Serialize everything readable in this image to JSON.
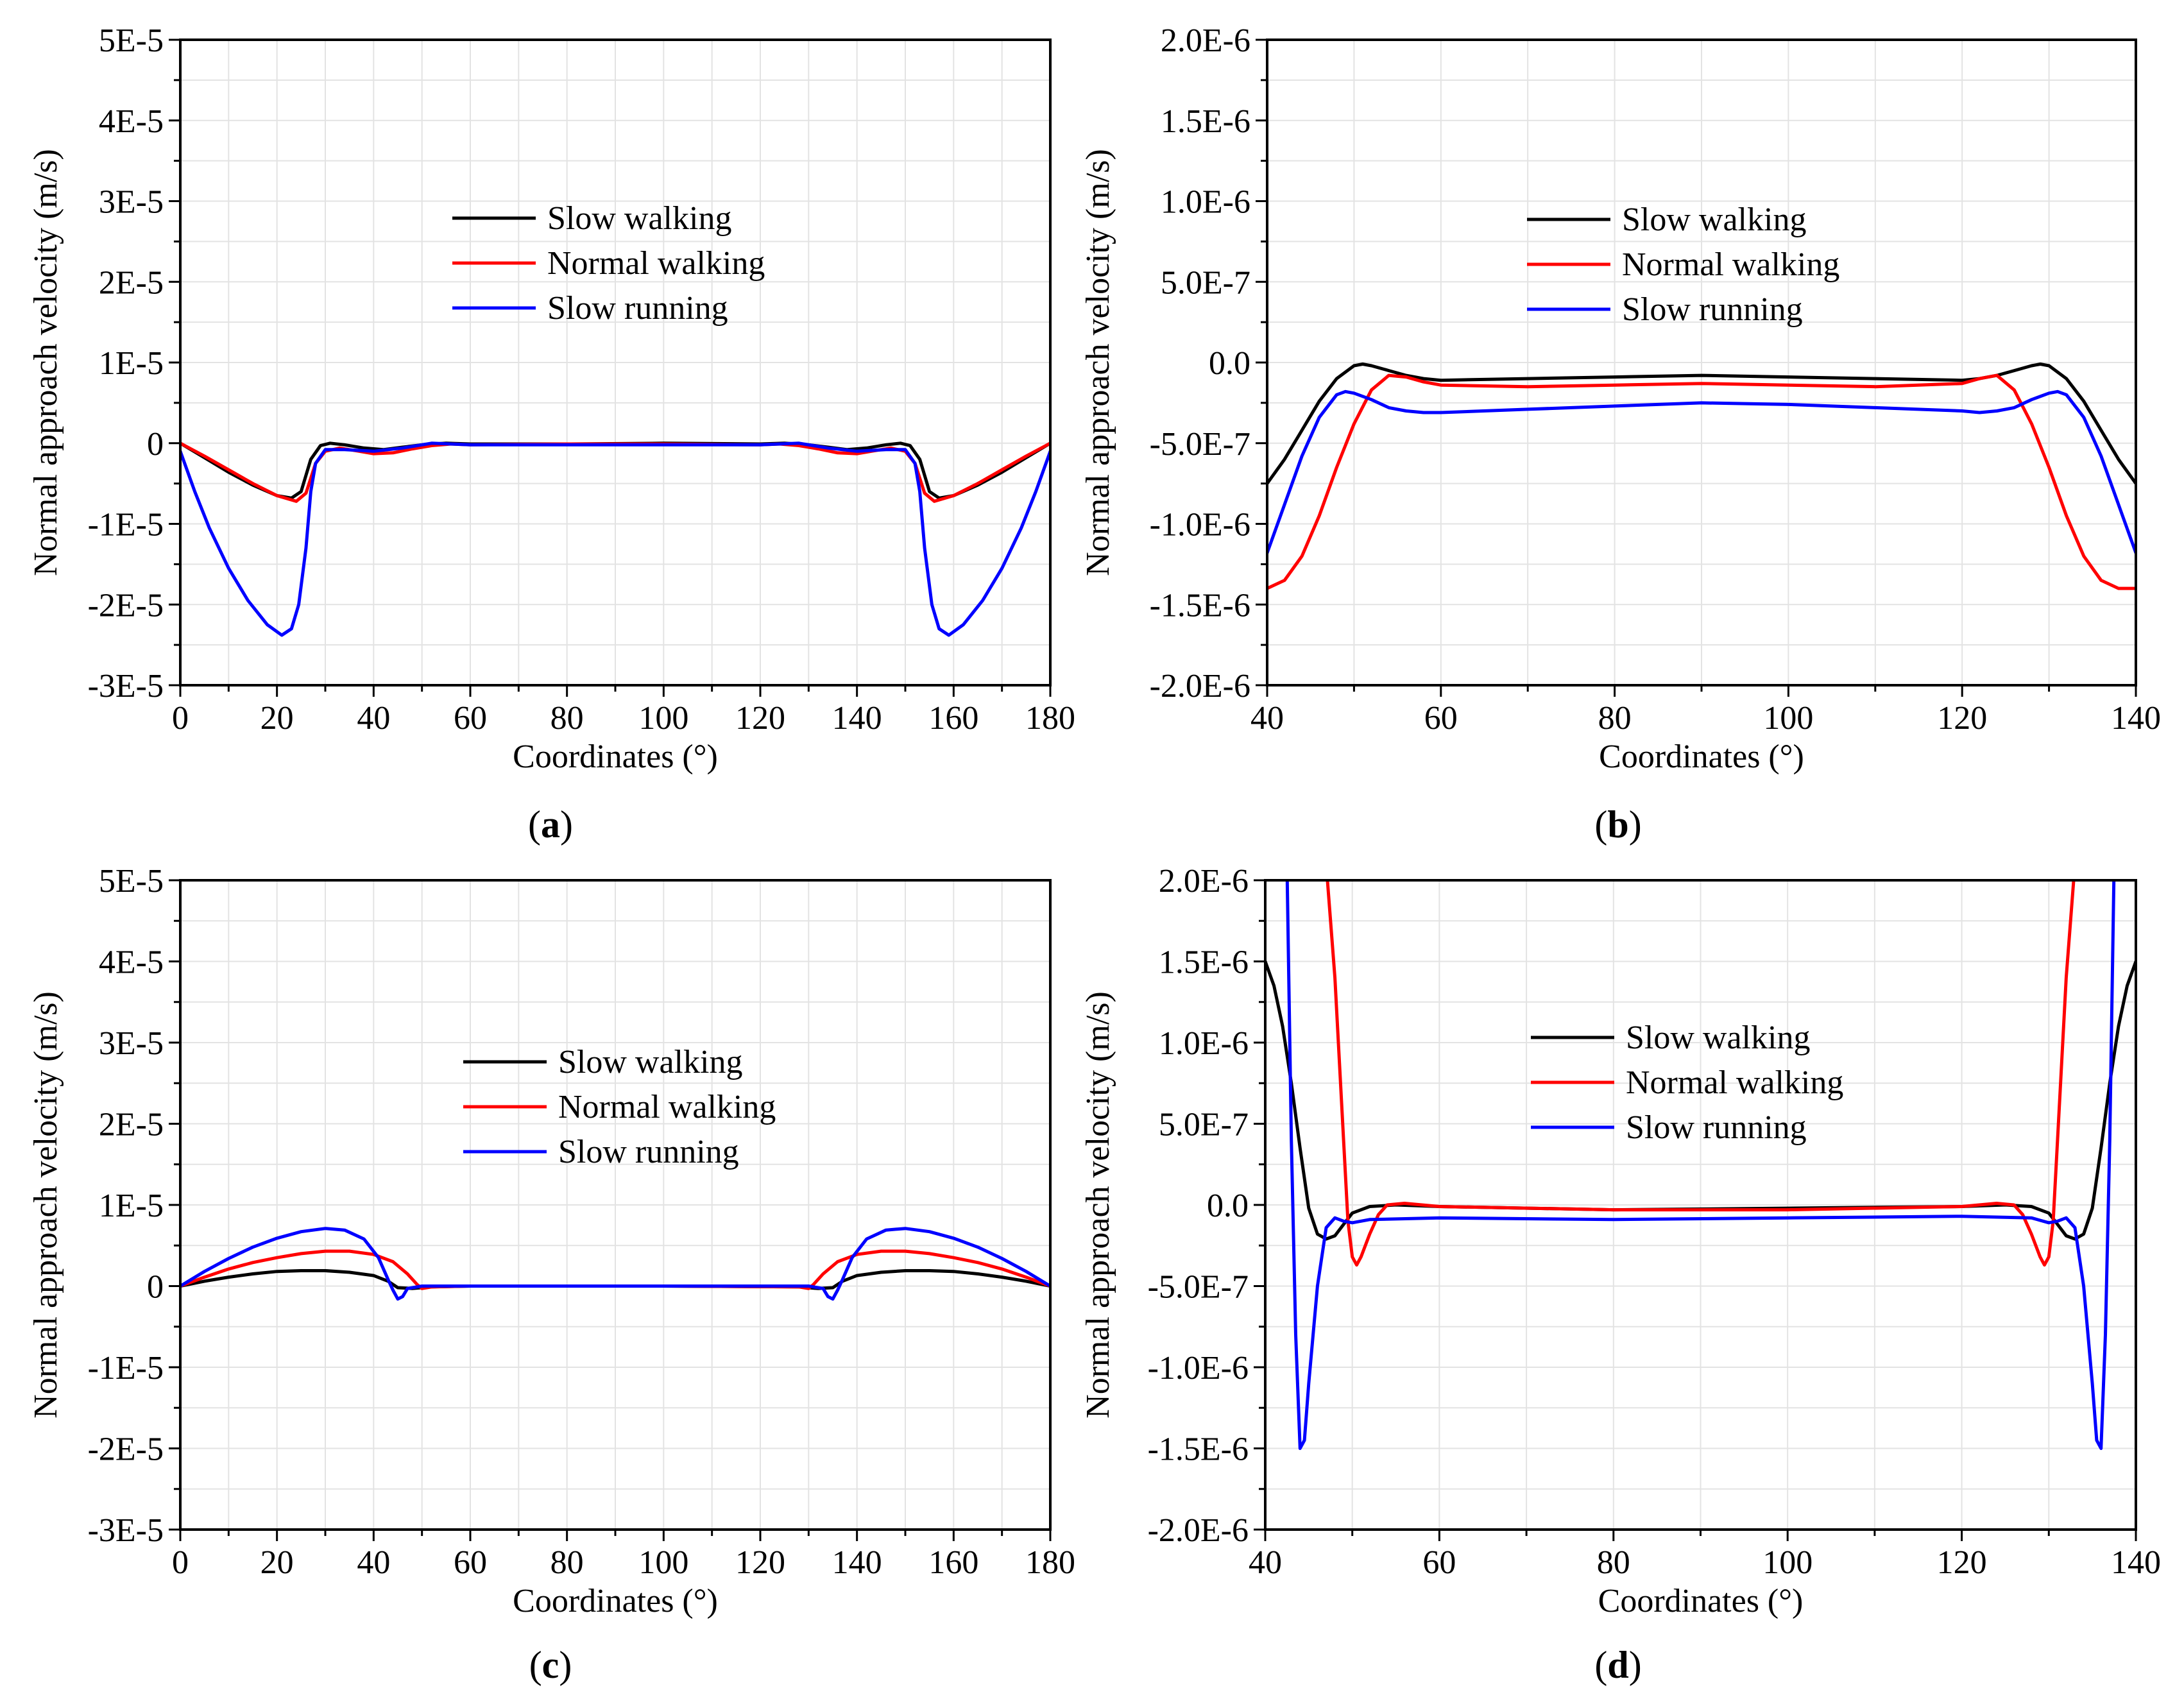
{
  "chart_data": [
    {
      "panel": "a",
      "type": "line",
      "xlabel": "Coordinates (°)",
      "ylabel": "Normal approach velocity (m/s)",
      "xlim": [
        0,
        180
      ],
      "ylim": [
        -3e-05,
        5e-05
      ],
      "xticks": [
        0,
        20,
        40,
        60,
        80,
        100,
        120,
        140,
        160,
        180
      ],
      "xtick_labels": [
        "0",
        "20",
        "40",
        "60",
        "80",
        "100",
        "120",
        "140",
        "160",
        "180"
      ],
      "yticks": [
        -3e-05,
        -2e-05,
        -1e-05,
        0,
        1e-05,
        2e-05,
        3e-05,
        4e-05,
        5e-05
      ],
      "ytick_labels": [
        "-3E-5",
        "-2E-5",
        "-1E-5",
        "0",
        "1E-5",
        "2E-5",
        "3E-5",
        "4E-5",
        "5E-5"
      ],
      "grid": true,
      "legend_position": "upper-center",
      "series": [
        {
          "name": "Slow walking",
          "color": "#000000",
          "x": [
            0,
            5,
            10,
            15,
            20,
            23,
            25,
            27,
            29,
            31,
            34,
            38,
            42,
            46,
            50,
            55,
            60,
            80,
            100,
            120,
            125,
            130,
            134,
            138,
            142,
            146,
            149,
            151,
            153,
            155,
            157,
            160,
            165,
            170,
            175,
            180
          ],
          "y": [
            0,
            -1.8e-06,
            -3.6e-06,
            -5.2e-06,
            -6.5e-06,
            -6.8e-06,
            -6e-06,
            -2e-06,
            -3e-07,
            0,
            -2e-07,
            -6e-07,
            -8e-07,
            -5e-07,
            -2e-07,
            0,
            -1e-07,
            -1e-07,
            0,
            -1e-07,
            0,
            -2e-07,
            -5e-07,
            -8e-07,
            -6e-07,
            -2e-07,
            0,
            -3e-07,
            -2e-06,
            -6e-06,
            -6.8e-06,
            -6.5e-06,
            -5.2e-06,
            -3.6e-06,
            -1.8e-06,
            0
          ]
        },
        {
          "name": "Normal walking",
          "color": "#ff0000",
          "x": [
            0,
            5,
            10,
            15,
            20,
            24,
            26,
            28,
            30,
            33,
            37,
            40,
            44,
            48,
            52,
            56,
            60,
            80,
            100,
            120,
            124,
            128,
            132,
            136,
            140,
            143,
            147,
            150,
            152,
            154,
            156,
            160,
            165,
            170,
            175,
            180
          ],
          "y": [
            0,
            -1.6e-06,
            -3.3e-06,
            -5e-06,
            -6.5e-06,
            -7.2e-06,
            -6.2e-06,
            -2.5e-06,
            -1e-06,
            -6e-07,
            -1e-06,
            -1.3e-06,
            -1.2e-06,
            -7e-07,
            -3e-07,
            -1e-07,
            -2e-07,
            -1e-07,
            -1e-07,
            -2e-07,
            -1e-07,
            -3e-07,
            -7e-07,
            -1.2e-06,
            -1.3e-06,
            -1e-06,
            -6e-07,
            -1e-06,
            -2.5e-06,
            -6.2e-06,
            -7.2e-06,
            -6.5e-06,
            -5e-06,
            -3.3e-06,
            -1.6e-06,
            0
          ]
        },
        {
          "name": "Slow running",
          "color": "#0000ff",
          "x": [
            0,
            3,
            6,
            10,
            14,
            18,
            21,
            23,
            24.5,
            26,
            27,
            28,
            30,
            34,
            40,
            46,
            52,
            60,
            80,
            100,
            120,
            128,
            134,
            140,
            146,
            150,
            152,
            153,
            154,
            155.5,
            157,
            159,
            162,
            166,
            170,
            174,
            177,
            180
          ],
          "y": [
            -1e-06,
            -6e-06,
            -1.05e-05,
            -1.55e-05,
            -1.95e-05,
            -2.25e-05,
            -2.38e-05,
            -2.3e-05,
            -2e-05,
            -1.3e-05,
            -6e-06,
            -2.5e-06,
            -8e-07,
            -8e-07,
            -1e-06,
            -6e-07,
            0,
            -2e-07,
            -2e-07,
            -2e-07,
            -2e-07,
            0,
            -6e-07,
            -1e-06,
            -8e-07,
            -8e-07,
            -2.5e-06,
            -6e-06,
            -1.3e-05,
            -2e-05,
            -2.3e-05,
            -2.38e-05,
            -2.25e-05,
            -1.95e-05,
            -1.55e-05,
            -1.05e-05,
            -6e-06,
            -1e-06
          ]
        }
      ]
    },
    {
      "panel": "b",
      "type": "line",
      "xlabel": "Coordinates (°)",
      "ylabel": "Normal approach velocity (m/s)",
      "xlim": [
        40,
        140
      ],
      "ylim": [
        -2e-06,
        2e-06
      ],
      "xticks": [
        40,
        60,
        80,
        100,
        120,
        140
      ],
      "xtick_labels": [
        "40",
        "60",
        "80",
        "100",
        "120",
        "140"
      ],
      "yticks": [
        -2e-06,
        -1.5e-06,
        -1e-06,
        -5e-07,
        0,
        5e-07,
        1e-06,
        1.5e-06,
        2e-06
      ],
      "ytick_labels": [
        "-2.0E-6",
        "-1.5E-6",
        "-1.0E-6",
        "-5.0E-7",
        "0.0",
        "5.0E-7",
        "1.0E-6",
        "1.5E-6",
        "2.0E-6"
      ],
      "grid": true,
      "legend_position": "upper-center",
      "series": [
        {
          "name": "Slow walking",
          "color": "#000000",
          "x": [
            40,
            42,
            44,
            46,
            48,
            50,
            51,
            52,
            54,
            56,
            58,
            60,
            70,
            80,
            90,
            100,
            110,
            120,
            122,
            124,
            126,
            128,
            129,
            130,
            132,
            134,
            136,
            138,
            140
          ],
          "y": [
            -7.5e-07,
            -6e-07,
            -4.2e-07,
            -2.4e-07,
            -1e-07,
            -2e-08,
            -1e-08,
            -2e-08,
            -5e-08,
            -8e-08,
            -1e-07,
            -1.1e-07,
            -1e-07,
            -9e-08,
            -8e-08,
            -9e-08,
            -1e-07,
            -1.1e-07,
            -1e-07,
            -8e-08,
            -5e-08,
            -2e-08,
            -1e-08,
            -2e-08,
            -1e-07,
            -2.4e-07,
            -4.2e-07,
            -6e-07,
            -7.5e-07
          ]
        },
        {
          "name": "Normal walking",
          "color": "#ff0000",
          "x": [
            40,
            42,
            44,
            46,
            48,
            50,
            52,
            54,
            56,
            58,
            60,
            70,
            80,
            90,
            100,
            110,
            120,
            122,
            124,
            126,
            128,
            130,
            132,
            134,
            136,
            138,
            140
          ],
          "y": [
            -1.4e-06,
            -1.35e-06,
            -1.2e-06,
            -9.5e-07,
            -6.5e-07,
            -3.8e-07,
            -1.7e-07,
            -8e-08,
            -9e-08,
            -1.2e-07,
            -1.4e-07,
            -1.5e-07,
            -1.4e-07,
            -1.3e-07,
            -1.4e-07,
            -1.5e-07,
            -1.3e-07,
            -1e-07,
            -8e-08,
            -1.7e-07,
            -3.8e-07,
            -6.5e-07,
            -9.5e-07,
            -1.2e-06,
            -1.35e-06,
            -1.4e-06,
            -1.4e-06
          ]
        },
        {
          "name": "Slow running",
          "color": "#0000ff",
          "x": [
            40,
            42,
            44,
            46,
            48,
            49,
            50,
            52,
            54,
            56,
            58,
            60,
            70,
            80,
            90,
            100,
            110,
            120,
            122,
            124,
            126,
            128,
            130,
            131,
            132,
            134,
            136,
            138,
            140
          ],
          "y": [
            -1.18e-06,
            -8.8e-07,
            -5.8e-07,
            -3.4e-07,
            -2e-07,
            -1.8e-07,
            -1.9e-07,
            -2.3e-07,
            -2.8e-07,
            -3e-07,
            -3.1e-07,
            -3.1e-07,
            -2.9e-07,
            -2.7e-07,
            -2.5e-07,
            -2.6e-07,
            -2.8e-07,
            -3e-07,
            -3.1e-07,
            -3e-07,
            -2.8e-07,
            -2.3e-07,
            -1.9e-07,
            -1.8e-07,
            -2e-07,
            -3.4e-07,
            -5.8e-07,
            -8.8e-07,
            -1.18e-06
          ]
        }
      ]
    },
    {
      "panel": "c",
      "type": "line",
      "xlabel": "Coordinates (°)",
      "ylabel": "Normal approach velocity (m/s)",
      "xlim": [
        0,
        180
      ],
      "ylim": [
        -3e-05,
        5e-05
      ],
      "xticks": [
        0,
        20,
        40,
        60,
        80,
        100,
        120,
        140,
        160,
        180
      ],
      "xtick_labels": [
        "0",
        "20",
        "40",
        "60",
        "80",
        "100",
        "120",
        "140",
        "160",
        "180"
      ],
      "yticks": [
        -3e-05,
        -2e-05,
        -1e-05,
        0,
        1e-05,
        2e-05,
        3e-05,
        4e-05,
        5e-05
      ],
      "ytick_labels": [
        "-3E-5",
        "-2E-5",
        "-1E-5",
        "0",
        "1E-5",
        "2E-5",
        "3E-5",
        "4E-5",
        "5E-5"
      ],
      "grid": true,
      "legend_position": "center",
      "series": [
        {
          "name": "Slow walking",
          "color": "#000000",
          "x": [
            0,
            5,
            10,
            15,
            20,
            25,
            30,
            35,
            40,
            43,
            45,
            48,
            52,
            60,
            100,
            128,
            132,
            135,
            137,
            140,
            145,
            150,
            155,
            160,
            165,
            170,
            175,
            180
          ],
          "y": [
            0,
            6e-07,
            1.1e-06,
            1.5e-06,
            1.8e-06,
            1.9e-06,
            1.9e-06,
            1.7e-06,
            1.3e-06,
            6e-07,
            -2e-07,
            -3e-07,
            -1e-07,
            0,
            0,
            -1e-07,
            -3e-07,
            -2e-07,
            6e-07,
            1.3e-06,
            1.7e-06,
            1.9e-06,
            1.9e-06,
            1.8e-06,
            1.5e-06,
            1.1e-06,
            6e-07,
            0
          ]
        },
        {
          "name": "Normal walking",
          "color": "#ff0000",
          "x": [
            0,
            5,
            10,
            15,
            20,
            25,
            30,
            35,
            40,
            44,
            47,
            49,
            50,
            52,
            60,
            100,
            128,
            130,
            131,
            133,
            136,
            140,
            145,
            150,
            155,
            160,
            165,
            170,
            175,
            180
          ],
          "y": [
            0,
            1.1e-06,
            2.1e-06,
            2.9e-06,
            3.5e-06,
            4e-06,
            4.3e-06,
            4.3e-06,
            3.9e-06,
            3e-06,
            1.5e-06,
            2e-07,
            -3e-07,
            -1e-07,
            0,
            0,
            -1e-07,
            -3e-07,
            2e-07,
            1.5e-06,
            3e-06,
            3.9e-06,
            4.3e-06,
            4.3e-06,
            4e-06,
            3.5e-06,
            2.9e-06,
            2.1e-06,
            1.1e-06,
            0
          ]
        },
        {
          "name": "Slow running",
          "color": "#0000ff",
          "x": [
            0,
            5,
            10,
            15,
            20,
            25,
            30,
            34,
            38,
            41,
            43,
            44,
            45,
            46,
            47,
            50,
            60,
            100,
            130,
            133,
            134,
            135,
            136,
            137,
            139,
            142,
            146,
            150,
            155,
            160,
            165,
            170,
            175,
            180
          ],
          "y": [
            0,
            1.8e-06,
            3.4e-06,
            4.8e-06,
            5.9e-06,
            6.7e-06,
            7.1e-06,
            6.9e-06,
            5.8e-06,
            3.5e-06,
            8e-07,
            -5e-07,
            -1.6e-06,
            -1.3e-06,
            -3e-07,
            0,
            0,
            0,
            0,
            -3e-07,
            -1.3e-06,
            -1.6e-06,
            -5e-07,
            8e-07,
            3.5e-06,
            5.8e-06,
            6.9e-06,
            7.1e-06,
            6.7e-06,
            5.9e-06,
            4.8e-06,
            3.4e-06,
            1.8e-06,
            0
          ]
        }
      ]
    },
    {
      "panel": "d",
      "type": "line",
      "xlabel": "Coordinates (°)",
      "ylabel": "Normal approach velocity (m/s)",
      "xlim": [
        40,
        140
      ],
      "ylim": [
        -2e-06,
        2e-06
      ],
      "xticks": [
        40,
        60,
        80,
        100,
        120,
        140
      ],
      "xtick_labels": [
        "40",
        "60",
        "80",
        "100",
        "120",
        "140"
      ],
      "yticks": [
        -2e-06,
        -1.5e-06,
        -1e-06,
        -5e-07,
        0,
        5e-07,
        1e-06,
        1.5e-06,
        2e-06
      ],
      "ytick_labels": [
        "-2.0E-6",
        "-1.5E-6",
        "-1.0E-6",
        "-5.0E-7",
        "0.0",
        "5.0E-7",
        "1.0E-6",
        "1.5E-6",
        "2.0E-6"
      ],
      "grid": true,
      "legend_position": "center",
      "series": [
        {
          "name": "Slow walking",
          "color": "#000000",
          "x": [
            40,
            41,
            42,
            43,
            44,
            45,
            46,
            47,
            48,
            49,
            50,
            52,
            55,
            60,
            80,
            100,
            120,
            125,
            128,
            130,
            131,
            132,
            133,
            134,
            135,
            136,
            137,
            138,
            139,
            140
          ],
          "y": [
            1.5e-06,
            1.35e-06,
            1.1e-06,
            7.5e-07,
            3.5e-07,
            -2e-08,
            -1.8e-07,
            -2.1e-07,
            -1.9e-07,
            -1.2e-07,
            -5e-08,
            -1e-08,
            0,
            -1e-08,
            -3e-08,
            -2e-08,
            -1e-08,
            0,
            -1e-08,
            -5e-08,
            -1.2e-07,
            -1.9e-07,
            -2.1e-07,
            -1.8e-07,
            -2e-08,
            3.5e-07,
            7.5e-07,
            1.1e-06,
            1.35e-06,
            1.5e-06
          ]
        },
        {
          "name": "Normal walking",
          "color": "#ff0000",
          "x": [
            47,
            48,
            49,
            49.5,
            50,
            50.5,
            51,
            52,
            53,
            54,
            56,
            60,
            80,
            100,
            120,
            124,
            126,
            127,
            128,
            129,
            129.5,
            130,
            130.5,
            131,
            132,
            133
          ],
          "y": [
            2.1e-06,
            1.4e-06,
            4e-07,
            -1e-07,
            -3.2e-07,
            -3.7e-07,
            -3.2e-07,
            -1.8e-07,
            -6e-08,
            0,
            1e-08,
            -1e-08,
            -3e-08,
            -3e-08,
            -1e-08,
            1e-08,
            0,
            -6e-08,
            -1.8e-07,
            -3.2e-07,
            -3.7e-07,
            -3.2e-07,
            -1e-07,
            4e-07,
            1.4e-06,
            2.1e-06
          ]
        },
        {
          "name": "Slow running",
          "color": "#0000ff",
          "x": [
            42.5,
            43,
            43.5,
            44,
            44.5,
            45,
            46,
            47,
            48,
            49,
            50,
            52,
            60,
            80,
            100,
            120,
            128,
            130,
            131,
            132,
            133,
            134,
            135,
            135.5,
            136,
            136.5,
            137,
            137.5
          ],
          "y": [
            2.1e-06,
            4e-07,
            -8e-07,
            -1.5e-06,
            -1.45e-06,
            -1.1e-06,
            -5e-07,
            -1.4e-07,
            -8e-08,
            -1e-07,
            -1.1e-07,
            -9e-08,
            -8e-08,
            -9e-08,
            -8e-08,
            -7e-08,
            -8e-08,
            -1.1e-07,
            -1e-07,
            -8e-08,
            -1.4e-07,
            -5e-07,
            -1.1e-06,
            -1.45e-06,
            -1.5e-06,
            -8e-07,
            4e-07,
            2.1e-06
          ]
        }
      ]
    }
  ],
  "panel_labels": [
    "a",
    "b",
    "c",
    "d"
  ]
}
